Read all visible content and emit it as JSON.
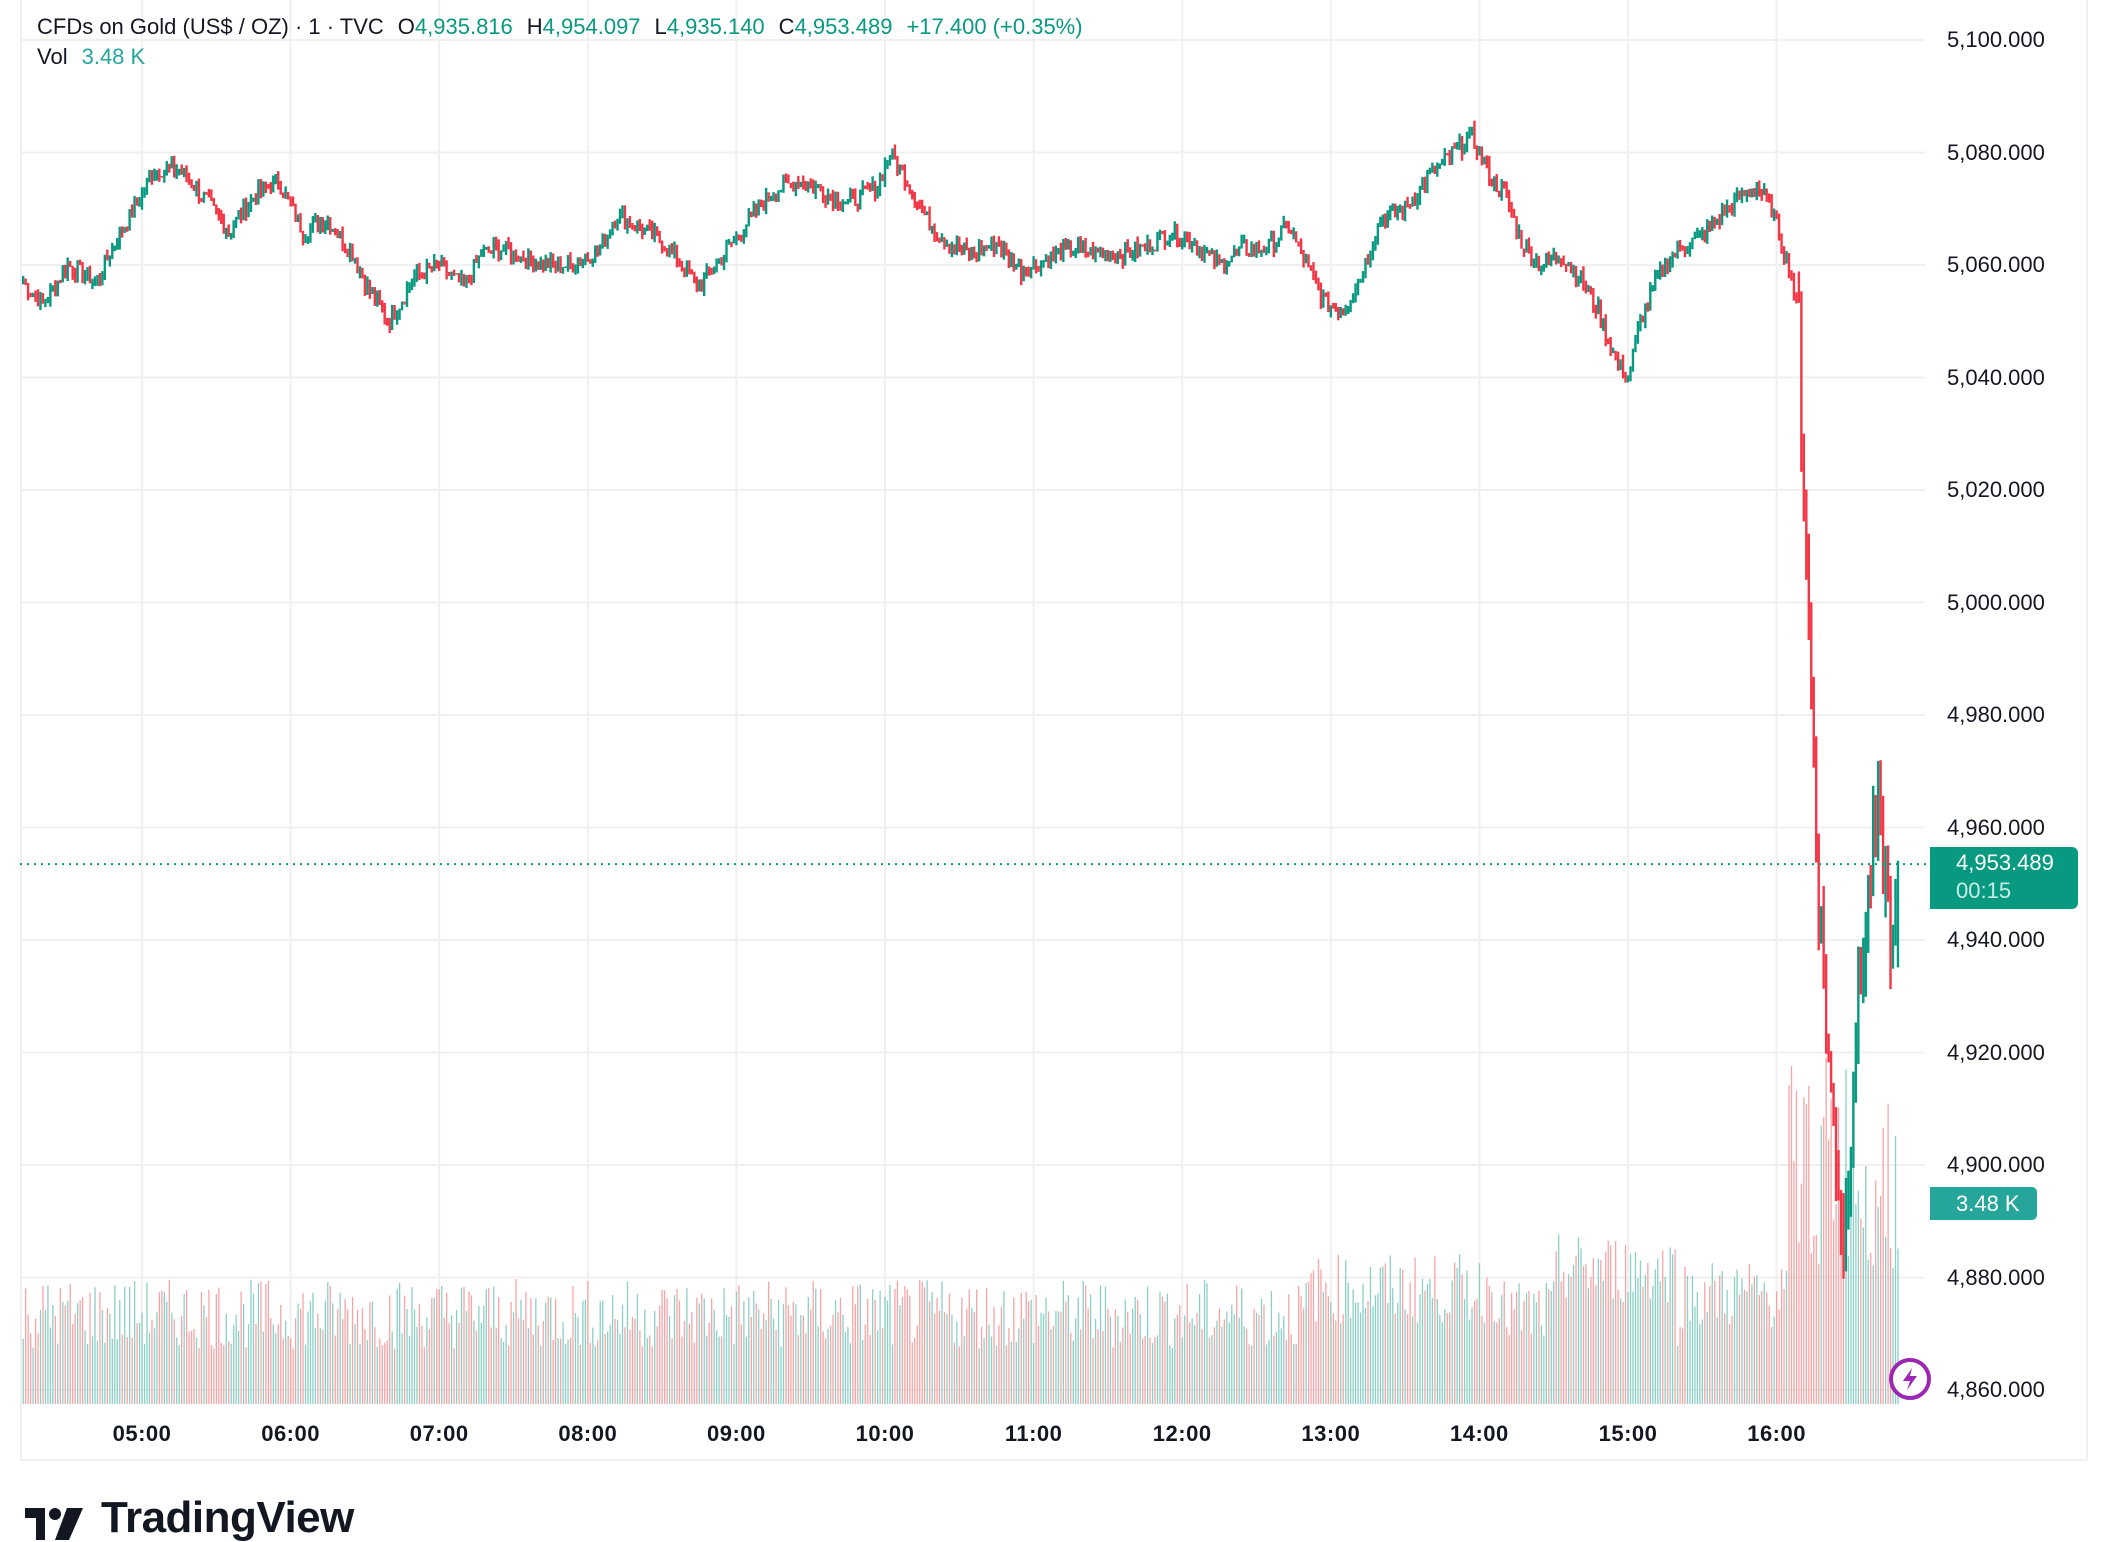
{
  "legend": {
    "symbol": "CFDs on Gold (US$ / OZ) · 1 · TVC",
    "open_label": "O",
    "open": "4,935.816",
    "high_label": "H",
    "high": "4,954.097",
    "low_label": "L",
    "low": "4,935.140",
    "close_label": "C",
    "close": "4,953.489",
    "change": "+17.400 (+0.35%)",
    "vol_label": "Vol",
    "vol": "3.48 K"
  },
  "price_tag": {
    "price": "4,953.489",
    "countdown": "00:15"
  },
  "volume_tag": "3.48 K",
  "logo_text": "TradingView",
  "colors": {
    "up": "#089981",
    "down": "#F23645",
    "vol_up": "#8CCFC6",
    "vol_down": "#F5A5A5",
    "grid": "#F0F0F0",
    "price_line": "#089981",
    "bolt": "#9C27B0"
  },
  "chart_data": {
    "type": "candlestick",
    "title": "CFDs on Gold (US$ / OZ) · 1 · TVC",
    "interval": "1 minute",
    "xlabel": "",
    "ylabel": "",
    "x_ticks": [
      "05:00",
      "06:00",
      "07:00",
      "08:00",
      "09:00",
      "10:00",
      "11:00",
      "12:00",
      "13:00",
      "14:00",
      "15:00",
      "16:00"
    ],
    "y_ticks": [
      "5,100.000",
      "5,080.000",
      "5,060.000",
      "5,040.000",
      "5,020.000",
      "5,000.000",
      "4,980.000",
      "4,960.000",
      "4,940.000",
      "4,920.000",
      "4,900.000",
      "4,880.000",
      "4,860.000"
    ],
    "ylim": [
      4855,
      5107
    ],
    "grid": true,
    "last_price": 4953.489,
    "ohlc_last": {
      "open": 4935.816,
      "high": 4954.097,
      "low": 4935.14,
      "close": 4953.489
    },
    "change": 17.4,
    "change_pct": 0.35,
    "volume_last": "3.48 K",
    "price_path": [
      [
        "04:12",
        5057
      ],
      [
        "04:20",
        5053
      ],
      [
        "04:30",
        5060
      ],
      [
        "04:42",
        5057
      ],
      [
        "04:50",
        5065
      ],
      [
        "04:57",
        5070
      ],
      [
        "05:05",
        5077
      ],
      [
        "05:15",
        5077
      ],
      [
        "05:25",
        5072
      ],
      [
        "05:35",
        5066
      ],
      [
        "05:45",
        5072
      ],
      [
        "05:55",
        5075
      ],
      [
        "06:05",
        5066
      ],
      [
        "06:15",
        5068
      ],
      [
        "06:25",
        5062
      ],
      [
        "06:32",
        5055
      ],
      [
        "06:40",
        5050
      ],
      [
        "06:50",
        5058
      ],
      [
        "07:00",
        5060
      ],
      [
        "07:10",
        5056
      ],
      [
        "07:17",
        5062
      ],
      [
        "07:25",
        5063
      ],
      [
        "07:35",
        5061
      ],
      [
        "07:45",
        5060
      ],
      [
        "07:55",
        5060
      ],
      [
        "08:05",
        5063
      ],
      [
        "08:12",
        5069
      ],
      [
        "08:20",
        5067
      ],
      [
        "08:30",
        5064
      ],
      [
        "08:38",
        5060
      ],
      [
        "08:45",
        5056
      ],
      [
        "08:55",
        5062
      ],
      [
        "09:05",
        5068
      ],
      [
        "09:15",
        5073
      ],
      [
        "09:25",
        5075
      ],
      [
        "09:35",
        5073
      ],
      [
        "09:45",
        5071
      ],
      [
        "09:57",
        5074
      ],
      [
        "10:02",
        5080
      ],
      [
        "10:10",
        5074
      ],
      [
        "10:17",
        5068
      ],
      [
        "10:25",
        5064
      ],
      [
        "10:35",
        5062
      ],
      [
        "10:45",
        5064
      ],
      [
        "10:55",
        5059
      ],
      [
        "11:05",
        5061
      ],
      [
        "11:15",
        5063
      ],
      [
        "11:25",
        5062
      ],
      [
        "11:35",
        5062
      ],
      [
        "11:45",
        5063
      ],
      [
        "11:55",
        5066
      ],
      [
        "12:05",
        5064
      ],
      [
        "12:15",
        5060
      ],
      [
        "12:25",
        5063
      ],
      [
        "12:35",
        5063
      ],
      [
        "12:43",
        5067
      ],
      [
        "12:50",
        5060
      ],
      [
        "12:58",
        5053
      ],
      [
        "13:05",
        5052
      ],
      [
        "13:12",
        5058
      ],
      [
        "13:20",
        5068
      ],
      [
        "13:30",
        5070
      ],
      [
        "13:40",
        5076
      ],
      [
        "13:50",
        5080
      ],
      [
        "13:57",
        5083
      ],
      [
        "14:05",
        5075
      ],
      [
        "14:10",
        5073
      ],
      [
        "14:17",
        5064
      ],
      [
        "14:25",
        5060
      ],
      [
        "14:33",
        5062
      ],
      [
        "14:40",
        5058
      ],
      [
        "14:48",
        5052
      ],
      [
        "14:55",
        5043
      ],
      [
        "15:00",
        5040
      ],
      [
        "15:05",
        5050
      ],
      [
        "15:12",
        5058
      ],
      [
        "15:20",
        5063
      ],
      [
        "15:30",
        5065
      ],
      [
        "15:38",
        5069
      ],
      [
        "15:45",
        5072
      ],
      [
        "15:52",
        5074
      ],
      [
        "15:58",
        5070
      ],
      [
        "16:02",
        5064
      ],
      [
        "16:06",
        5058
      ],
      [
        "16:09",
        5050
      ],
      [
        "16:10",
        5030
      ],
      [
        "16:12",
        5010
      ],
      [
        "16:14",
        4985
      ],
      [
        "16:16",
        4960
      ],
      [
        "16:18",
        4940
      ],
      [
        "16:20",
        4925
      ],
      [
        "16:22",
        4912
      ],
      [
        "16:25",
        4898
      ],
      [
        "16:27",
        4885
      ],
      [
        "16:29",
        4900
      ],
      [
        "16:31",
        4918
      ],
      [
        "16:34",
        4935
      ],
      [
        "16:38",
        4952
      ],
      [
        "16:41",
        4962
      ],
      [
        "16:44",
        4950
      ],
      [
        "16:47",
        4937
      ],
      [
        "16:49",
        4953.489
      ]
    ],
    "notable_points": {
      "session_high": {
        "time": "13:57",
        "price": 5083.6
      },
      "session_low": {
        "time": "16:27",
        "price": 4877.5
      },
      "rebound_high": {
        "time": "16:41",
        "price": 4969.3
      }
    }
  }
}
